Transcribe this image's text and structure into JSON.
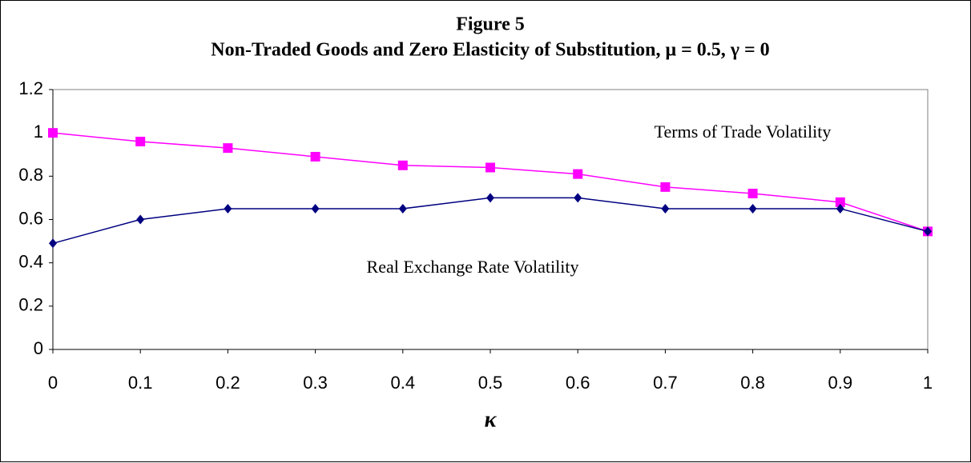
{
  "chart_data": {
    "type": "line",
    "title": "Figure 5",
    "subtitle": "Non-Traded Goods and Zero Elasticity of Substitution, μ = 0.5, γ = 0",
    "x_label": "κ",
    "x": [
      0,
      0.1,
      0.2,
      0.3,
      0.4,
      0.5,
      0.6,
      0.7,
      0.8,
      0.9,
      1
    ],
    "series": [
      {
        "color": "#ff00ff",
        "marker": "square",
        "values": [
          1.0,
          0.96,
          0.93,
          0.89,
          0.85,
          0.84,
          0.81,
          0.75,
          0.72,
          0.68,
          0.545
        ]
      },
      {
        "color": "#000080",
        "marker": "diamond",
        "values": [
          0.49,
          0.6,
          0.65,
          0.65,
          0.65,
          0.7,
          0.7,
          0.65,
          0.65,
          0.65,
          0.545
        ]
      }
    ],
    "annotations": [
      "Terms of Trade Volatility",
      "Real Exchange Rate Volatility"
    ],
    "xlim": [
      0,
      1
    ],
    "xticks": [
      0,
      0.1,
      0.2,
      0.3,
      0.4,
      0.5,
      0.6,
      0.7,
      0.8,
      0.9,
      1
    ],
    "ylim": [
      0,
      1.2
    ],
    "yticks": [
      0,
      0.2,
      0.4,
      0.6,
      0.8,
      1,
      1.2
    ],
    "grid": false
  }
}
